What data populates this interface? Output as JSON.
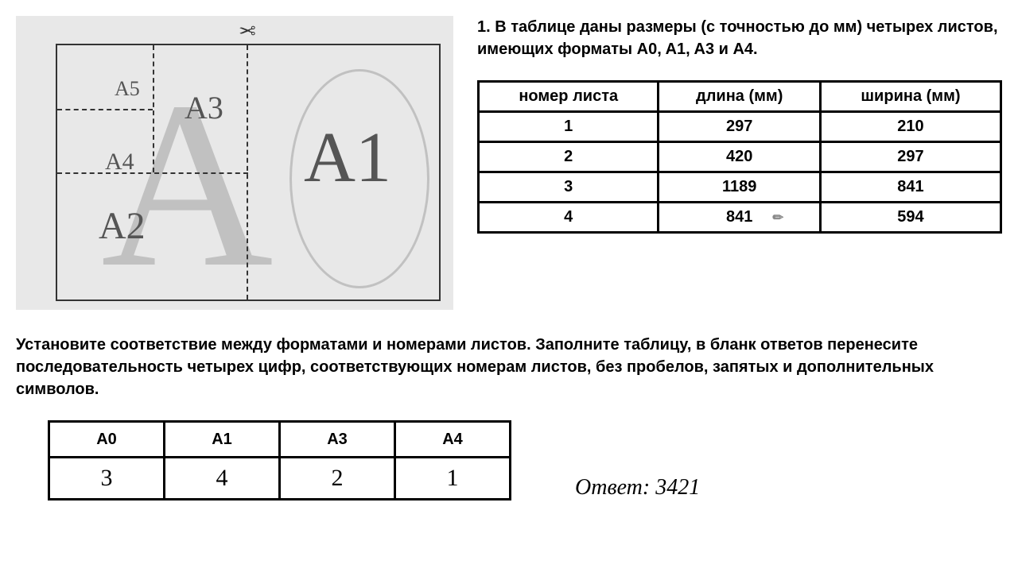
{
  "problem": {
    "text": "1. В таблице даны размеры (с точностью до мм) четырех листов, имеющих форматы A0, A1, A3 и A4."
  },
  "diagram": {
    "labels": {
      "a5": "A5",
      "a4": "A4",
      "a3": "A3",
      "a2": "A2",
      "a1": "A1"
    },
    "scissors": "✂"
  },
  "table": {
    "headers": {
      "sheet": "номер листа",
      "length": "длина (мм)",
      "width": "ширина (мм)"
    },
    "rows": [
      {
        "n": "1",
        "length": "297",
        "width": "210"
      },
      {
        "n": "2",
        "length": "420",
        "width": "297"
      },
      {
        "n": "3",
        "length": "1189",
        "width": "841"
      },
      {
        "n": "4",
        "length": "841",
        "width": "594"
      }
    ]
  },
  "instruction": "Установите соответствие между форматами и номерами листов. Заполните таблицу, в бланк ответов перенесите последовательность четырех цифр, соответствующих номерам листов, без пробелов, запятых и дополнительных символов.",
  "answer_table": {
    "headers": [
      "A0",
      "A1",
      "A3",
      "A4"
    ],
    "values": [
      "3",
      "4",
      "2",
      "1"
    ]
  },
  "final": {
    "label": "Ответ:",
    "value": "3421"
  }
}
